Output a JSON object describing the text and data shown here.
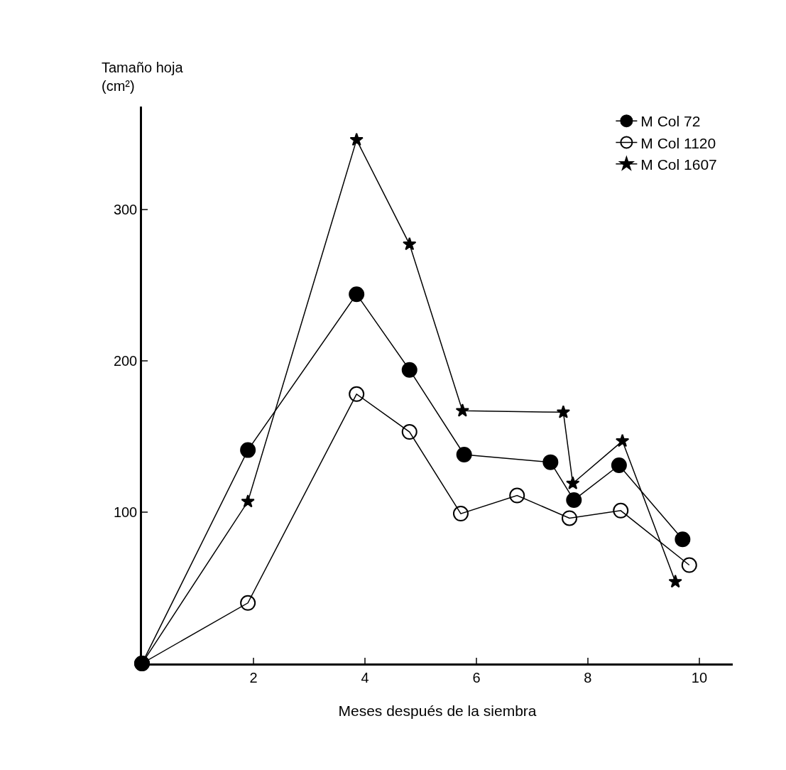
{
  "chart_data": {
    "type": "line",
    "xlabel": "Meses después de la siembra",
    "ylabel": "Tamaño hoja\n(cm²)",
    "xlim": [
      0,
      10.6
    ],
    "xticks": [
      2,
      4,
      6,
      8,
      10
    ],
    "ylim": [
      0,
      368
    ],
    "yticks": [
      100,
      200,
      300
    ],
    "legend": "top right",
    "series": [
      {
        "name": "M Col 72",
        "color": "#000000",
        "marker": "circle",
        "x": [
          0,
          1.9,
          3.85,
          4.8,
          5.78,
          7.33,
          7.75,
          8.56,
          9.7
        ],
        "values": [
          0,
          141,
          244,
          194,
          138,
          133,
          108,
          131,
          82
        ]
      },
      {
        "name": "M Col 1120",
        "color": "#000000",
        "marker": "circle-open",
        "x": [
          0,
          1.9,
          3.85,
          4.8,
          5.72,
          6.73,
          7.67,
          8.59,
          9.82
        ],
        "values": [
          0,
          40,
          178,
          153,
          99,
          111,
          96,
          101,
          65
        ]
      },
      {
        "name": "M Col 1607",
        "color": "#000000",
        "marker": "star",
        "x": [
          0,
          1.9,
          3.85,
          4.8,
          5.75,
          7.56,
          7.73,
          8.62,
          9.57
        ],
        "values": [
          0,
          107,
          346,
          277,
          167,
          166,
          119,
          147,
          54
        ]
      }
    ]
  }
}
